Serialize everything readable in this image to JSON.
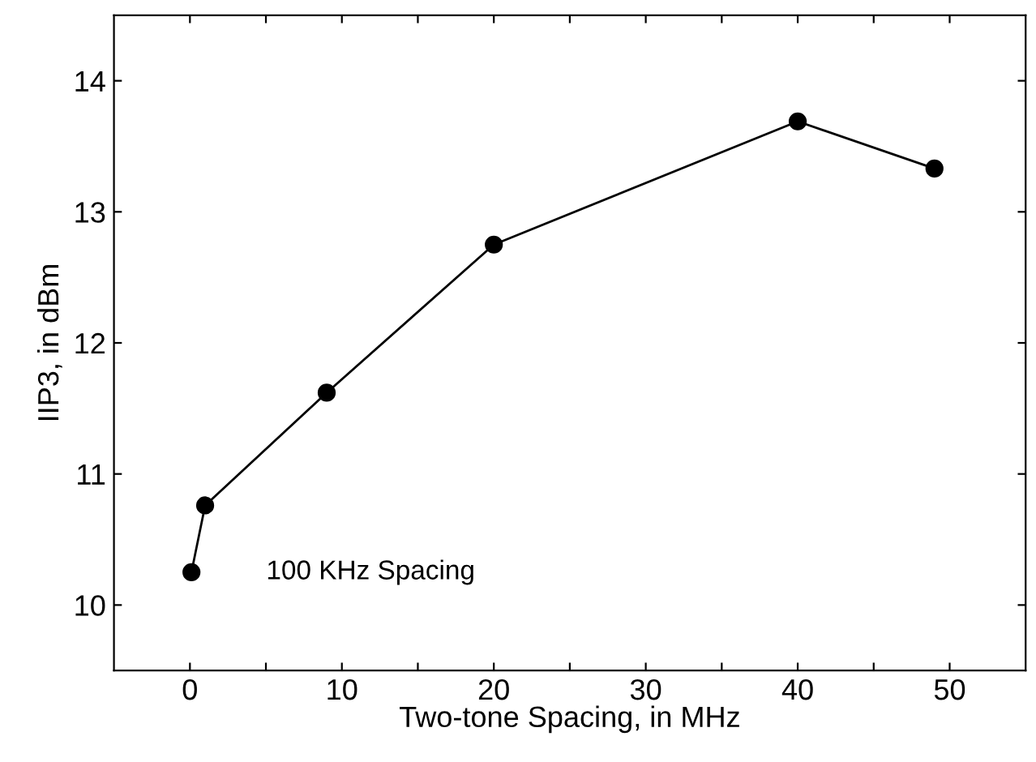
{
  "chart_data": {
    "type": "line",
    "xlabel": "Two-tone Spacing, in MHz",
    "ylabel": "IIP3, in dBm",
    "x": [
      0.1,
      1,
      9,
      20,
      40,
      49
    ],
    "series": [
      {
        "color": "#000000",
        "values": [
          10.25,
          10.76,
          11.62,
          12.75,
          13.69,
          13.33
        ]
      }
    ],
    "xlim": [
      -5,
      55
    ],
    "ylim": [
      9.5,
      14.5
    ],
    "xticks": [
      0,
      {
        "value": 5,
        "label": null
      },
      10,
      {
        "value": 15,
        "label": null
      },
      20,
      {
        "value": 25,
        "label": null
      },
      30,
      {
        "value": 35,
        "label": null
      },
      40,
      {
        "value": 45,
        "label": null
      },
      50
    ],
    "yticks": [
      10,
      11,
      12,
      13,
      14
    ],
    "marker": "circle",
    "line_style": "solid",
    "grid": false,
    "legend": false,
    "annotations": [
      "100 KHz Spacing"
    ]
  }
}
